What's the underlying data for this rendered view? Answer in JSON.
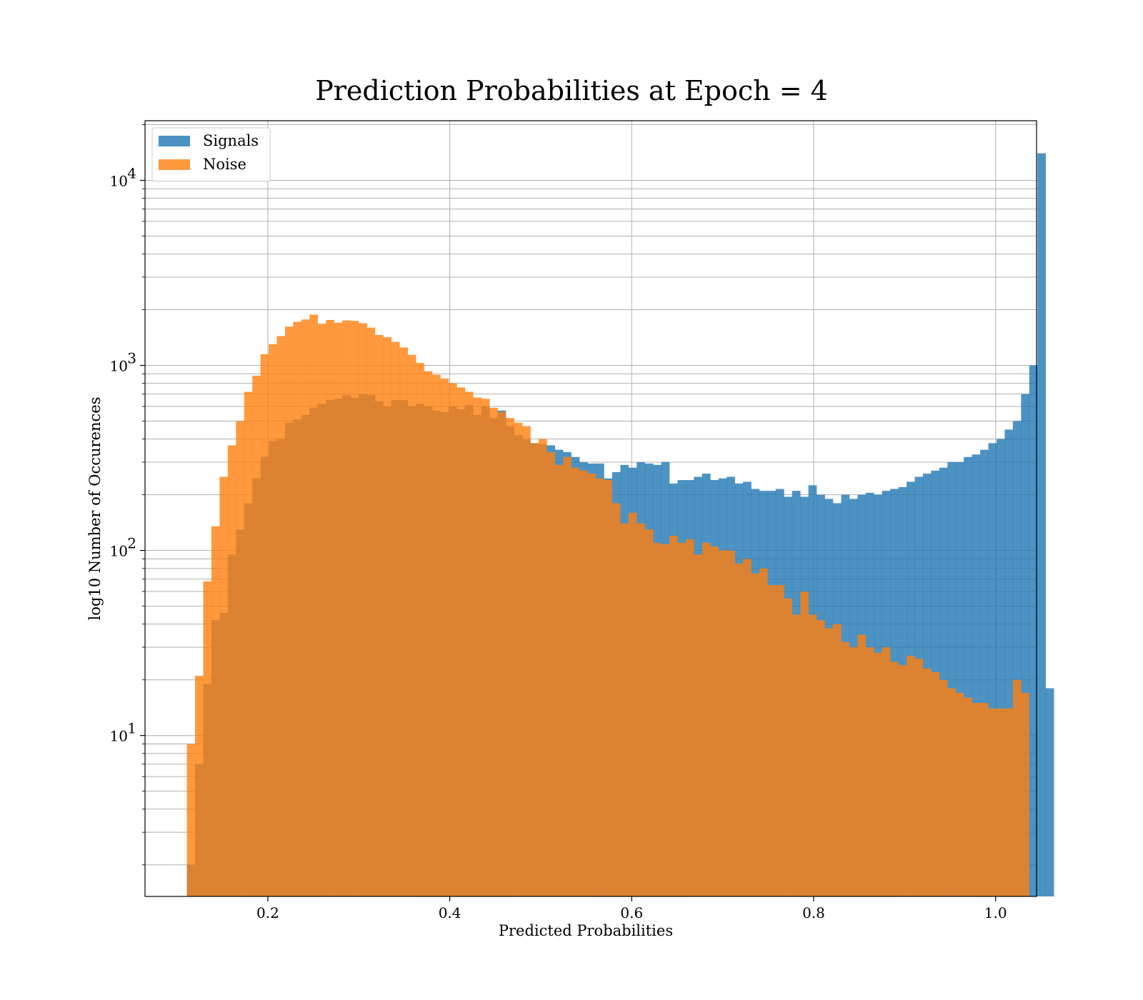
{
  "chart_data": {
    "type": "bar",
    "title": "Prediction Probabilities at Epoch = 4",
    "xlabel": "Predicted Probabilities",
    "ylabel": "log10 Number of Occurences",
    "xlim": [
      0.065,
      1.045
    ],
    "ylim": [
      1.35,
      21000
    ],
    "yscale": "log",
    "grid": true,
    "legend_position": "top-left",
    "x_ticks": [
      0.2,
      0.4,
      0.6,
      0.8,
      1.0
    ],
    "x_tick_labels": [
      "0.2",
      "0.4",
      "0.6",
      "0.8",
      "1.0"
    ],
    "y_tick_labels": [
      {
        "value": 10,
        "base": "10",
        "exp": "1"
      },
      {
        "value": 100,
        "base": "10",
        "exp": "2"
      },
      {
        "value": 1000,
        "base": "10",
        "exp": "3"
      },
      {
        "value": 10000,
        "base": "10",
        "exp": "4"
      }
    ],
    "series": [
      {
        "name": "Signals",
        "color": "#1f77b4",
        "opacity": 0.8,
        "bin_start": 0.111,
        "bin_width": 0.00899,
        "values": [
          2,
          7,
          19,
          42,
          46,
          95,
          130,
          180,
          245,
          320,
          390,
          400,
          490,
          510,
          540,
          590,
          620,
          650,
          660,
          690,
          670,
          700,
          690,
          640,
          600,
          650,
          650,
          600,
          620,
          600,
          570,
          560,
          600,
          580,
          610,
          540,
          600,
          520,
          570,
          470,
          420,
          400,
          380,
          375,
          370,
          350,
          340,
          320,
          300,
          295,
          295,
          245,
          265,
          290,
          280,
          300,
          295,
          290,
          300,
          230,
          240,
          240,
          250,
          260,
          240,
          245,
          250,
          230,
          235,
          215,
          210,
          210,
          215,
          195,
          210,
          195,
          225,
          200,
          190,
          180,
          200,
          190,
          200,
          205,
          200,
          210,
          215,
          220,
          235,
          250,
          260,
          270,
          280,
          300,
          300,
          320,
          330,
          350,
          380,
          400,
          450,
          500,
          700,
          1000,
          14000,
          18
        ]
      },
      {
        "name": "Noise",
        "color": "#ff7f0e",
        "opacity": 0.8,
        "bin_start": 0.111,
        "bin_width": 0.00899,
        "values": [
          9,
          21,
          68,
          135,
          250,
          370,
          500,
          720,
          880,
          1150,
          1300,
          1440,
          1620,
          1720,
          1770,
          1880,
          1680,
          1760,
          1700,
          1750,
          1740,
          1690,
          1600,
          1460,
          1420,
          1340,
          1250,
          1140,
          1030,
          930,
          890,
          850,
          800,
          760,
          720,
          670,
          660,
          590,
          560,
          520,
          490,
          470,
          380,
          400,
          340,
          290,
          320,
          280,
          270,
          260,
          245,
          240,
          180,
          140,
          160,
          140,
          130,
          110,
          108,
          120,
          110,
          115,
          95,
          110,
          105,
          100,
          100,
          85,
          90,
          75,
          80,
          65,
          65,
          55,
          45,
          60,
          45,
          42,
          38,
          40,
          32,
          30,
          35,
          30,
          28,
          30,
          25,
          24,
          27,
          26,
          23,
          22,
          20,
          18,
          17,
          16,
          15,
          15,
          14,
          14,
          14,
          20,
          17
        ]
      }
    ]
  }
}
